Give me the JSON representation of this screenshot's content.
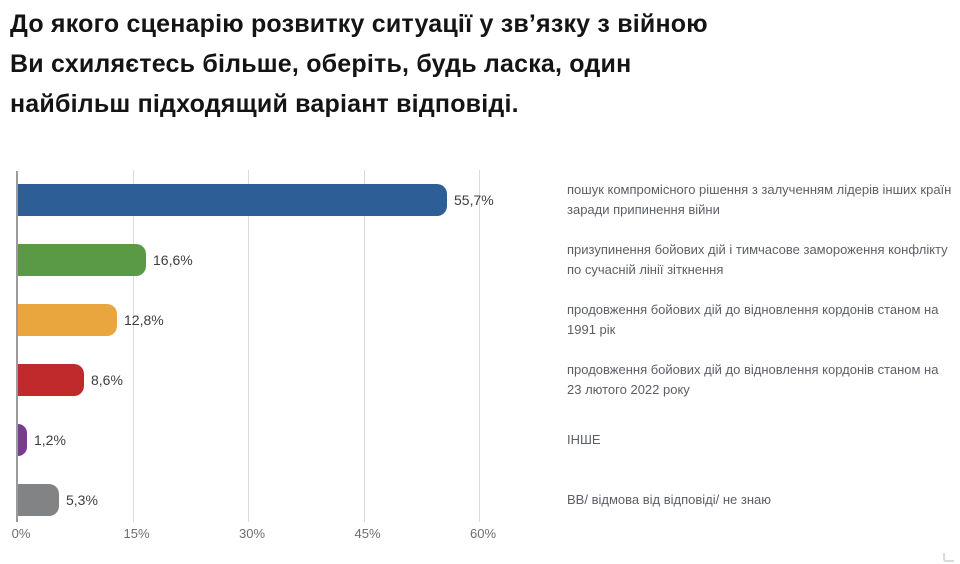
{
  "title": {
    "lines": [
      "До якого сценарію розвитку ситуації у зв’язку з війною",
      "Ви схиляєтесь більше, оберіть, будь ласка, один",
      "найбільш підходящий варіант відповіді."
    ]
  },
  "chart_data": {
    "type": "bar",
    "orientation": "horizontal",
    "title": "До якого сценарію розвитку ситуації у зв’язку з війною Ви схиляєтесь більше, оберіть, будь ласка, один найбільш підходящий варіант відповіді.",
    "categories": [
      "пошук компромісного рішення з залученням лідерів інших країн заради припинення війни",
      "призупинення бойових дій і тимчасове замороження конфлікту по сучасній лінії зіткнення",
      "продовження бойових дій до відновлення кордонів станом на 1991 рік",
      "продовження бойових дій до відновлення кордонів станом на 23 лютого 2022 року",
      "ІНШЕ",
      "ВВ/ відмова від відповіді/ не знаю"
    ],
    "values": [
      55.7,
      16.6,
      12.8,
      8.6,
      1.2,
      5.3
    ],
    "value_labels": [
      "55,7%",
      "16,6%",
      "12,8%",
      "8,6%",
      "1,2%",
      "5,3%"
    ],
    "bar_colors": [
      "#2d5e95",
      "#5b9a44",
      "#e9a53e",
      "#c02a2d",
      "#7a3c90",
      "#828385"
    ],
    "x_ticks": [
      "0%",
      "15%",
      "30%",
      "45%",
      "60%"
    ],
    "x_tick_values": [
      0,
      15,
      30,
      45,
      60
    ],
    "xlim": [
      0,
      60
    ],
    "xlabel": "",
    "ylabel": "",
    "grid": true,
    "labels_position": "right"
  },
  "colors": {
    "grid": "#d9d9d9",
    "axis": "#9b9b9b",
    "value_text": "#3d3d3d",
    "category_text": "#5c6066",
    "tick_text": "#6e6e6e",
    "title_text": "#141414"
  }
}
